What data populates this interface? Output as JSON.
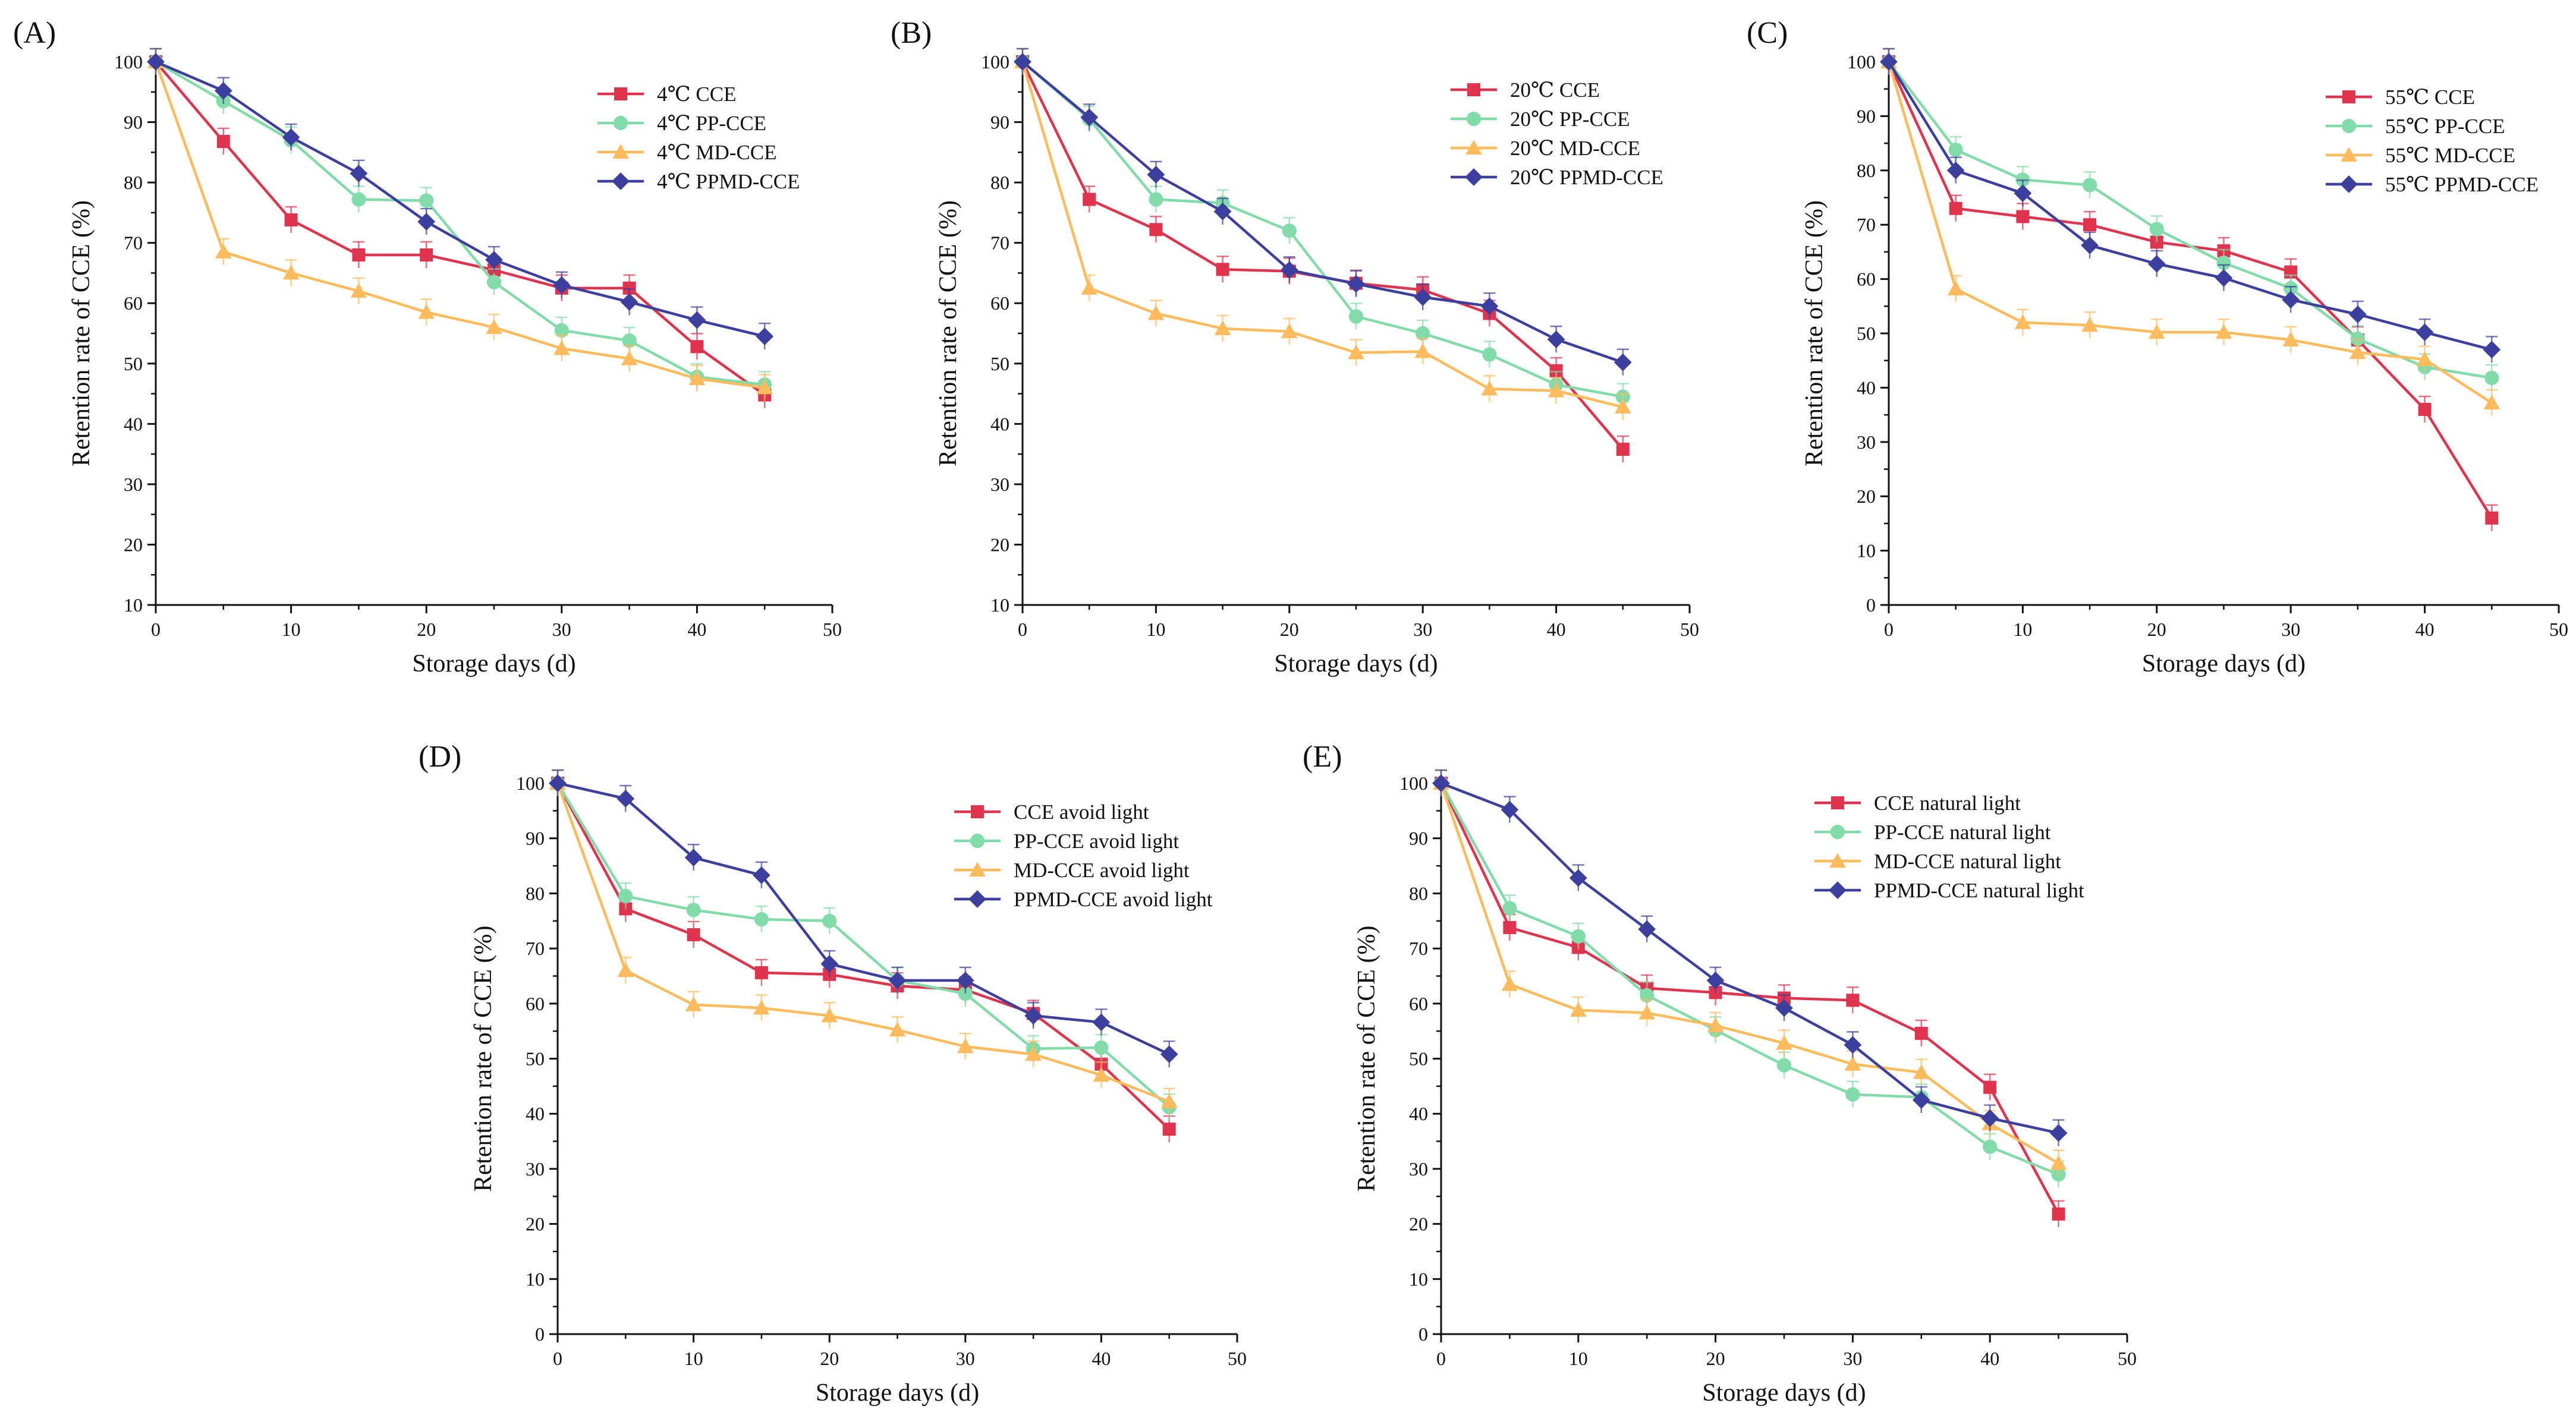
{
  "colors": {
    "red": "#e0334d",
    "green": "#82dcaa",
    "orange": "#ffbb5c",
    "blue": "#3d3f9e",
    "axis": "#111111"
  },
  "chart_data": [
    {
      "type": "line",
      "panel_label": "(A)",
      "xlabel": "Storage days (d)",
      "ylabel": "Retention rate of CCE (%)",
      "xlim": [
        0,
        50
      ],
      "ylim": [
        10,
        100
      ],
      "xticks": [
        "0",
        "10",
        "20",
        "30",
        "40",
        "50"
      ],
      "yticks": [
        "10",
        "20",
        "30",
        "40",
        "50",
        "60",
        "70",
        "80",
        "90",
        "100"
      ],
      "legend_position": "top-right",
      "x": [
        0,
        5,
        10,
        15,
        20,
        25,
        30,
        35,
        40,
        45
      ],
      "series": [
        {
          "name": "4℃ CCE",
          "color": "red",
          "marker": "square",
          "values": [
            100,
            86.8,
            73.8,
            68,
            68,
            65.5,
            62.5,
            62.5,
            52.8,
            44.8
          ]
        },
        {
          "name": "4℃ PP-CCE",
          "color": "green",
          "marker": "circle",
          "values": [
            100,
            93.5,
            87,
            77.2,
            77,
            63.5,
            55.5,
            53.8,
            47.8,
            46.5
          ]
        },
        {
          "name": "4℃ MD-CCE",
          "color": "orange",
          "marker": "triangle",
          "values": [
            100,
            68.5,
            65,
            62,
            58.5,
            56,
            52.5,
            50.8,
            47.5,
            46
          ]
        },
        {
          "name": "4℃ PPMD-CCE",
          "color": "blue",
          "marker": "diamond",
          "values": [
            100,
            95.2,
            87.5,
            81.5,
            73.5,
            67.2,
            63,
            60.2,
            57.2,
            54.5
          ]
        }
      ]
    },
    {
      "type": "line",
      "panel_label": "(B)",
      "xlabel": "Storage days (d)",
      "ylabel": "Retention rate of CCE (%)",
      "xlim": [
        0,
        50
      ],
      "ylim": [
        10,
        100
      ],
      "xticks": [
        "0",
        "10",
        "20",
        "30",
        "40",
        "50"
      ],
      "yticks": [
        "10",
        "20",
        "30",
        "40",
        "50",
        "60",
        "70",
        "80",
        "90",
        "100"
      ],
      "legend_position": "top-right",
      "x": [
        0,
        5,
        10,
        15,
        20,
        25,
        30,
        35,
        40,
        45
      ],
      "series": [
        {
          "name": "20℃ CCE",
          "color": "red",
          "marker": "square",
          "values": [
            100,
            77.2,
            72.2,
            65.6,
            65.3,
            63.3,
            62.2,
            58.3,
            48.8,
            35.8
          ]
        },
        {
          "name": "20℃ PP-CCE",
          "color": "green",
          "marker": "circle",
          "values": [
            100,
            90.5,
            77.2,
            76.6,
            72,
            57.8,
            55,
            51.5,
            46.5,
            44.5
          ]
        },
        {
          "name": "20℃ MD-CCE",
          "color": "orange",
          "marker": "triangle",
          "values": [
            100,
            62.5,
            58.3,
            55.8,
            55.3,
            51.8,
            52,
            45.8,
            45.5,
            42.8
          ]
        },
        {
          "name": "20℃ PPMD-CCE",
          "color": "blue",
          "marker": "diamond",
          "values": [
            100,
            90.8,
            81.3,
            75.2,
            65.5,
            63.2,
            61,
            59.5,
            54,
            50.2
          ]
        }
      ]
    },
    {
      "type": "line",
      "panel_label": "(C)",
      "xlabel": "Storage days (d)",
      "ylabel": "Retention rate of CCE (%)",
      "xlim": [
        0,
        50
      ],
      "ylim": [
        0,
        100
      ],
      "xticks": [
        "0",
        "10",
        "20",
        "30",
        "40",
        "50"
      ],
      "yticks": [
        "0",
        "10",
        "20",
        "30",
        "40",
        "50",
        "60",
        "70",
        "80",
        "90",
        "100"
      ],
      "legend_position": "top-right",
      "x": [
        0,
        5,
        10,
        15,
        20,
        25,
        30,
        35,
        40,
        45
      ],
      "series": [
        {
          "name": "55℃ CCE",
          "color": "red",
          "marker": "square",
          "values": [
            100,
            73,
            71.5,
            70,
            66.8,
            65.2,
            61.3,
            48.8,
            36,
            16
          ]
        },
        {
          "name": "55℃ PP-CCE",
          "color": "green",
          "marker": "circle",
          "values": [
            100,
            83.8,
            78.3,
            77.3,
            69.2,
            63,
            58.3,
            49,
            43.8,
            41.8
          ]
        },
        {
          "name": "55℃ MD-CCE",
          "color": "orange",
          "marker": "triangle",
          "values": [
            100,
            58.2,
            52,
            51.5,
            50.2,
            50.2,
            48.8,
            46.5,
            45.2,
            37.2
          ]
        },
        {
          "name": "55℃ PPMD-CCE",
          "color": "blue",
          "marker": "diamond",
          "values": [
            100,
            80,
            75.8,
            66.2,
            62.8,
            60.2,
            56.2,
            53.5,
            50.2,
            47
          ]
        }
      ]
    },
    {
      "type": "line",
      "panel_label": "(D)",
      "xlabel": "Storage days (d)",
      "ylabel": "Retention rate of CCE (%)",
      "xlim": [
        0,
        50
      ],
      "ylim": [
        0,
        100
      ],
      "xticks": [
        "0",
        "10",
        "20",
        "30",
        "40",
        "50"
      ],
      "yticks": [
        "0",
        "10",
        "20",
        "30",
        "40",
        "50",
        "60",
        "70",
        "80",
        "90",
        "100"
      ],
      "legend_position": "top-right",
      "x": [
        0,
        5,
        10,
        15,
        20,
        25,
        30,
        35,
        40,
        45
      ],
      "series": [
        {
          "name": "CCE avoid light",
          "color": "red",
          "marker": "square",
          "values": [
            100,
            77.2,
            72.5,
            65.6,
            65.3,
            63.2,
            62.5,
            58.2,
            49,
            37.2
          ]
        },
        {
          "name": "PP-CCE avoid light",
          "color": "green",
          "marker": "circle",
          "values": [
            100,
            79.5,
            77,
            75.3,
            75,
            64.2,
            61.8,
            51.8,
            52,
            41.2
          ]
        },
        {
          "name": "MD-CCE avoid light",
          "color": "orange",
          "marker": "triangle",
          "values": [
            100,
            66,
            59.8,
            59.2,
            57.8,
            55.2,
            52.2,
            50.8,
            47,
            42.2
          ]
        },
        {
          "name": "PPMD-CCE avoid light",
          "color": "blue",
          "marker": "diamond",
          "values": [
            100,
            97.2,
            86.5,
            83.3,
            67.2,
            64.2,
            64.2,
            57.8,
            56.6,
            50.8
          ]
        }
      ]
    },
    {
      "type": "line",
      "panel_label": "(E)",
      "xlabel": "Storage days (d)",
      "ylabel": "Retention rate of CCE (%)",
      "xlim": [
        0,
        50
      ],
      "ylim": [
        0,
        100
      ],
      "xticks": [
        "0",
        "10",
        "20",
        "30",
        "40",
        "50"
      ],
      "yticks": [
        "0",
        "10",
        "20",
        "30",
        "40",
        "50",
        "60",
        "70",
        "80",
        "90",
        "100"
      ],
      "legend_position": "top-right",
      "x": [
        0,
        5,
        10,
        15,
        20,
        25,
        30,
        35,
        40,
        45
      ],
      "series": [
        {
          "name": "CCE natural light",
          "color": "red",
          "marker": "square",
          "values": [
            100,
            73.8,
            70.2,
            62.8,
            62,
            61,
            60.6,
            54.6,
            44.8,
            21.8
          ]
        },
        {
          "name": "PP-CCE natural light",
          "color": "green",
          "marker": "circle",
          "values": [
            100,
            77.3,
            72.2,
            61.5,
            55.2,
            48.8,
            43.5,
            43,
            34,
            29
          ]
        },
        {
          "name": "MD-CCE natural light",
          "color": "orange",
          "marker": "triangle",
          "values": [
            100,
            63.5,
            58.8,
            58.3,
            56,
            52.8,
            49,
            47.5,
            38.2,
            31
          ]
        },
        {
          "name": "PPMD-CCE natural light",
          "color": "blue",
          "marker": "diamond",
          "values": [
            100,
            95.2,
            82.8,
            73.5,
            64.2,
            59.2,
            52.5,
            42.5,
            39.2,
            36.5
          ]
        }
      ]
    }
  ]
}
